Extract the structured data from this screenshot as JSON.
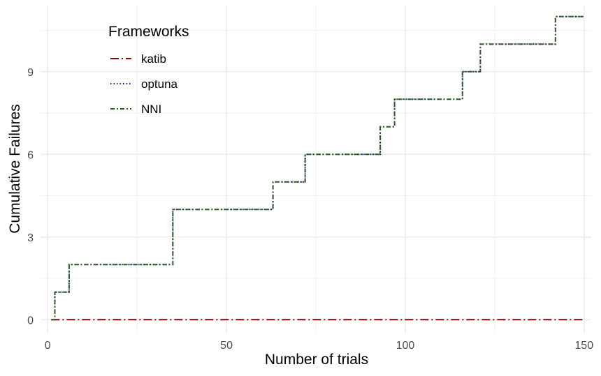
{
  "chart_data": {
    "type": "line",
    "title": "",
    "xlabel": "Number of trials",
    "ylabel": "Cumulative Failures",
    "xlim": [
      -2,
      152
    ],
    "ylim": [
      -0.5,
      11.4
    ],
    "x_ticks": [
      0,
      50,
      100,
      150
    ],
    "y_ticks": [
      0,
      3,
      6,
      9
    ],
    "x_tick_labels": [
      "0",
      "50",
      "100",
      "150"
    ],
    "y_tick_labels": [
      "0",
      "3",
      "6",
      "9"
    ],
    "grid": true,
    "legend": {
      "title": "Frameworks",
      "position": "top-left",
      "entries": [
        "katib",
        "optuna",
        "NNI"
      ]
    },
    "series": [
      {
        "name": "katib",
        "color": "#8b0000",
        "dash": "longdash-dot",
        "x": [
          1,
          150
        ],
        "y": [
          0,
          0
        ]
      },
      {
        "name": "optuna",
        "color": "#1a1a7a",
        "dash": "dotted",
        "x": [
          1,
          2,
          4,
          5,
          6,
          34,
          35,
          62,
          63,
          71,
          72,
          92,
          93,
          96,
          97,
          115,
          116,
          120,
          121,
          141,
          142,
          150
        ],
        "y": [
          0,
          1,
          1,
          1,
          2,
          2,
          4,
          4,
          5,
          5,
          6,
          6,
          7,
          7,
          8,
          8,
          9,
          9,
          10,
          10,
          11,
          11
        ]
      },
      {
        "name": "NNI",
        "color": "#2e5e1e",
        "dash": "dash-dot",
        "x": [
          1,
          2,
          4,
          5,
          6,
          34,
          35,
          62,
          63,
          71,
          72,
          92,
          93,
          96,
          97,
          115,
          116,
          120,
          121,
          141,
          142,
          150
        ],
        "y": [
          0,
          1,
          1,
          1,
          2,
          2,
          4,
          4,
          5,
          5,
          6,
          6,
          7,
          7,
          8,
          8,
          9,
          9,
          10,
          10,
          11,
          11
        ]
      }
    ]
  }
}
